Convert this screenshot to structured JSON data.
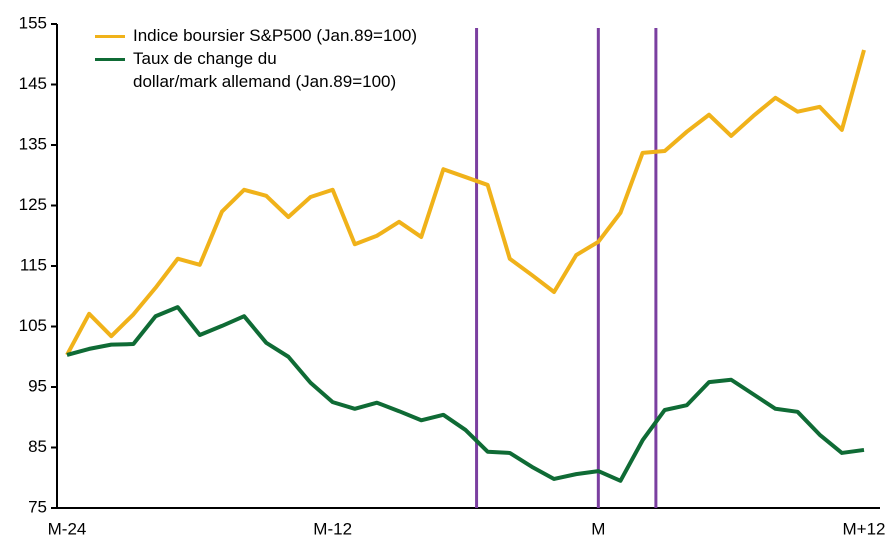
{
  "chart_data": {
    "type": "line",
    "categories": [
      "M-24",
      null,
      null,
      null,
      null,
      null,
      null,
      null,
      null,
      null,
      null,
      null,
      "M-12",
      null,
      null,
      null,
      null,
      null,
      null,
      null,
      null,
      null,
      null,
      null,
      "M",
      null,
      null,
      null,
      null,
      null,
      null,
      null,
      null,
      null,
      null,
      null,
      "M+12"
    ],
    "series": [
      {
        "name": "Indice boursier S&P500 (Jan.89=100)",
        "color": "#f0b21a",
        "values": [
          100.3,
          107.1,
          103.4,
          107,
          111.4,
          116.2,
          115.2,
          124,
          127.6,
          126.6,
          123.1,
          126.4,
          127.6,
          118.6,
          120,
          122.3,
          119.8,
          131,
          129.7,
          128.4,
          116.2,
          113.5,
          110.7,
          116.8,
          119,
          123.8,
          133.7,
          134,
          137.2,
          140,
          136.5,
          139.8,
          142.8,
          140.5,
          141.3,
          137.5,
          150.7
        ]
      },
      {
        "name": "Taux de change du\ndollar/mark allemand (Jan.89=100)",
        "color": "#0f6b35",
        "values": [
          100.3,
          101.3,
          102,
          102.1,
          106.7,
          108.2,
          103.6,
          105.1,
          106.7,
          102.3,
          100,
          95.7,
          92.5,
          91.4,
          92.4,
          91,
          89.5,
          90.4,
          87.9,
          84.3,
          84.1,
          81.8,
          79.8,
          80.6,
          81.1,
          79.5,
          86.2,
          91.2,
          92,
          95.8,
          96.2,
          93.8,
          91.4,
          90.9,
          87.1,
          84.1,
          84.6
        ]
      }
    ],
    "ylim": [
      75,
      155
    ],
    "yticks": [
      75,
      85,
      95,
      105,
      115,
      125,
      135,
      145,
      155
    ],
    "vlines": [
      18.5,
      24,
      26.6
    ],
    "vline_color": "#7b3fa0",
    "grid": false
  }
}
